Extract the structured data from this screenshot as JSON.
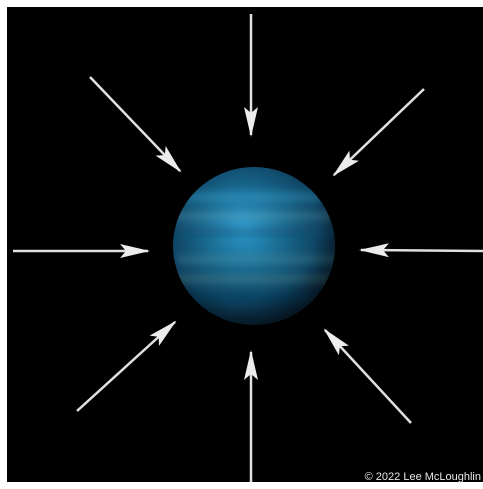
{
  "image": {
    "subject": "planet",
    "arrow_count": 8,
    "arrow_direction": "inward",
    "colors": {
      "background": "#000000",
      "frame": "#ffffff",
      "planet_dark": "#0b2c44",
      "planet_mid": "#1a6f98",
      "planet_light": "#2d9ccf",
      "arrow": "#e6e6e6"
    }
  },
  "credit": "© 2022 Lee McLoughlin"
}
